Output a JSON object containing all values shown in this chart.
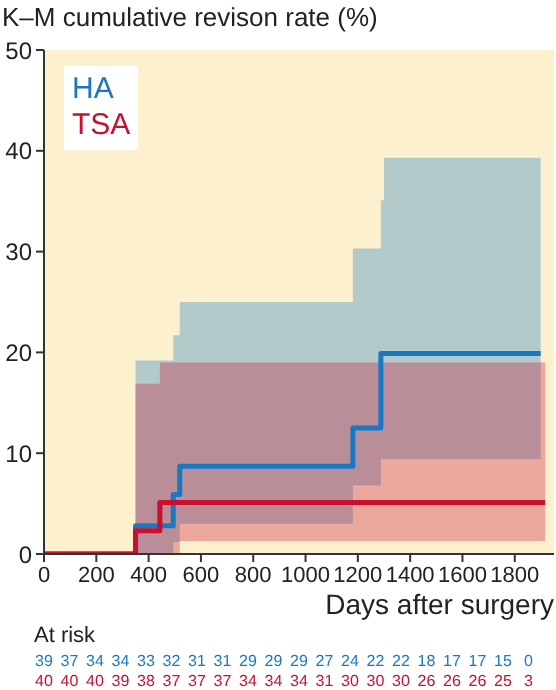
{
  "chart_data": {
    "type": "step",
    "ylabel": "K–M cumulative revison rate (%)",
    "xlabel": "Days after surgery",
    "xlim": [
      0,
      1950
    ],
    "xticks": [
      0,
      200,
      400,
      600,
      800,
      1000,
      1200,
      1400,
      1600,
      1800
    ],
    "ylim": [
      0,
      50
    ],
    "yticks": [
      0,
      10,
      20,
      30,
      40,
      50
    ],
    "legend": "top left",
    "marker": "none",
    "line_style": "solid",
    "series": [
      {
        "name": "HA",
        "color": "#1a78c2",
        "x": [
          0,
          350,
          494,
          519,
          1181,
          1288,
          1300,
          1899
        ],
        "values": [
          0,
          2.8,
          5.9,
          8.7,
          12.5,
          19.9,
          19.9,
          19.9
        ],
        "lower": [
          0,
          0,
          1.2,
          3,
          6.8,
          9.4,
          9.4,
          9.4
        ],
        "upper": [
          0,
          19.2,
          21.7,
          25,
          30.3,
          35.1,
          39.3,
          39.3
        ]
      },
      {
        "name": "TSA",
        "color": "#c8102e",
        "x": [
          0,
          350,
          443,
          519,
          1916
        ],
        "values": [
          0,
          2.3,
          5.1,
          5.1,
          5.1
        ],
        "lower": [
          0,
          0,
          0,
          1.3,
          1.3
        ],
        "upper": [
          0,
          16.9,
          19,
          19,
          19
        ]
      }
    ],
    "annotations": [
      "At risk",
      "39 37 34 34 33 32 31 31 29 29 29 27 24 22 22 18 17 17 15 0",
      "40 40 40 39 38 37 37 37 34 34 34 31 30 30 30 26 26 26 25 3"
    ]
  }
}
